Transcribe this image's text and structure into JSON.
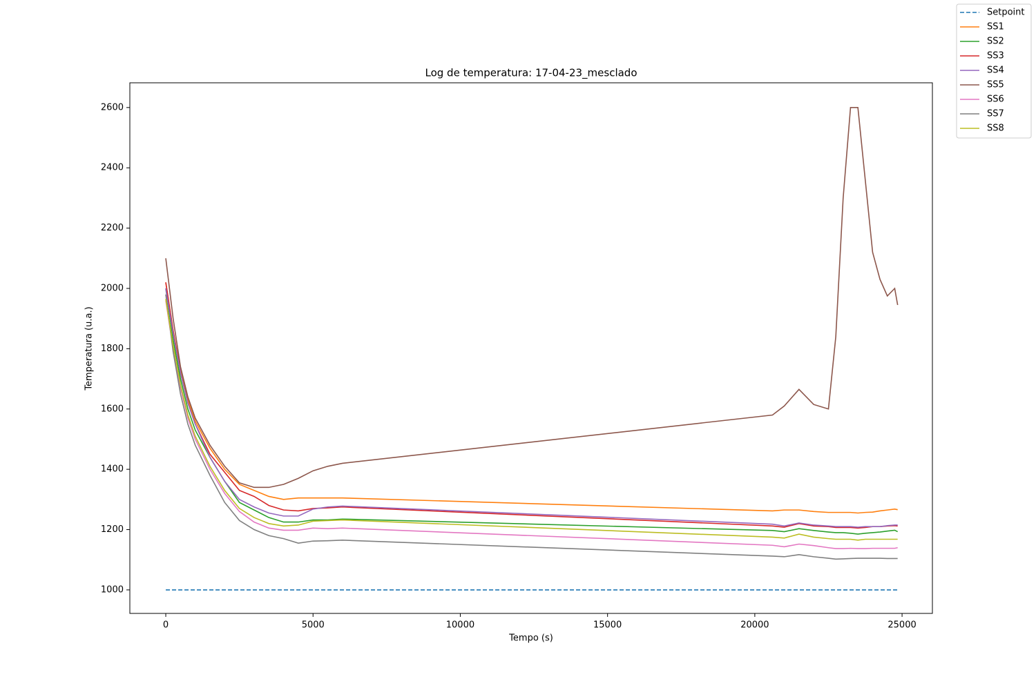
{
  "chart_data": {
    "type": "line",
    "title": "Log de temperatura: 17-04-23_mesclado",
    "x_label": "Tempo (s)",
    "y_label": "Temperatura (u.a.)",
    "x": [
      0,
      250,
      500,
      750,
      1000,
      1500,
      2000,
      2500,
      3000,
      3500,
      4000,
      4500,
      5000,
      5500,
      6000,
      20600,
      21000,
      21500,
      22000,
      22500,
      22750,
      23000,
      23250,
      23500,
      23750,
      24000,
      24250,
      24500,
      24750,
      24850
    ],
    "xlim": [
      -1220,
      26030
    ],
    "ylim": [
      922,
      2682
    ],
    "xticks": [
      0,
      5000,
      10000,
      15000,
      20000,
      25000
    ],
    "yticks": [
      1000,
      1200,
      1400,
      1600,
      1800,
      2000,
      2200,
      2400,
      2600
    ],
    "legend": "upper-right-outside",
    "series": [
      {
        "name": "Setpoint",
        "color": "#1f77b4",
        "linestyle": "dashed",
        "values": [
          1000,
          1000,
          1000,
          1000,
          1000,
          1000,
          1000,
          1000,
          1000,
          1000,
          1000,
          1000,
          1000,
          1000,
          1000,
          1000,
          1000,
          1000,
          1000,
          1000,
          1000,
          1000,
          1000,
          1000,
          1000,
          1000,
          1000,
          1000,
          1000,
          1000
        ]
      },
      {
        "name": "SS1",
        "color": "#ff7f0e",
        "linestyle": "solid",
        "values": [
          2020,
          1860,
          1730,
          1630,
          1560,
          1470,
          1400,
          1350,
          1330,
          1310,
          1300,
          1305,
          1305,
          1305,
          1305,
          1262,
          1265,
          1265,
          1260,
          1257,
          1257,
          1257,
          1257,
          1255,
          1257,
          1258,
          1262,
          1265,
          1268,
          1266
        ]
      },
      {
        "name": "SS2",
        "color": "#2ca02c",
        "linestyle": "solid",
        "values": [
          2000,
          1830,
          1700,
          1600,
          1530,
          1440,
          1360,
          1290,
          1265,
          1240,
          1225,
          1225,
          1232,
          1232,
          1235,
          1197,
          1193,
          1203,
          1197,
          1192,
          1190,
          1190,
          1188,
          1185,
          1188,
          1190,
          1192,
          1195,
          1198,
          1193
        ]
      },
      {
        "name": "SS3",
        "color": "#d62728",
        "linestyle": "solid",
        "values": [
          2020,
          1860,
          1720,
          1620,
          1550,
          1450,
          1390,
          1330,
          1310,
          1280,
          1265,
          1262,
          1270,
          1272,
          1275,
          1212,
          1208,
          1220,
          1212,
          1210,
          1207,
          1207,
          1207,
          1205,
          1207,
          1210,
          1210,
          1212,
          1213,
          1212
        ]
      },
      {
        "name": "SS4",
        "color": "#9467bd",
        "linestyle": "solid",
        "values": [
          2000,
          1850,
          1720,
          1620,
          1550,
          1440,
          1360,
          1300,
          1275,
          1255,
          1245,
          1245,
          1268,
          1275,
          1278,
          1218,
          1212,
          1222,
          1215,
          1212,
          1210,
          1210,
          1210,
          1208,
          1210,
          1210,
          1210,
          1213,
          1215,
          1215
        ]
      },
      {
        "name": "SS5",
        "color": "#8c564b",
        "linestyle": "solid",
        "values": [
          2100,
          1900,
          1740,
          1640,
          1570,
          1480,
          1410,
          1355,
          1340,
          1340,
          1350,
          1370,
          1395,
          1410,
          1420,
          1580,
          1610,
          1665,
          1615,
          1600,
          1840,
          2300,
          2600,
          2600,
          2360,
          2120,
          2030,
          1975,
          2000,
          1945
        ]
      },
      {
        "name": "SS6",
        "color": "#e377c2",
        "linestyle": "solid",
        "values": [
          1960,
          1800,
          1670,
          1570,
          1500,
          1400,
          1320,
          1260,
          1225,
          1205,
          1198,
          1198,
          1205,
          1203,
          1205,
          1148,
          1143,
          1152,
          1147,
          1140,
          1137,
          1137,
          1138,
          1137,
          1137,
          1138,
          1138,
          1138,
          1138,
          1140
        ]
      },
      {
        "name": "SS7",
        "color": "#7f7f7f",
        "linestyle": "solid",
        "values": [
          1980,
          1790,
          1650,
          1550,
          1480,
          1380,
          1290,
          1230,
          1200,
          1180,
          1170,
          1155,
          1162,
          1163,
          1165,
          1112,
          1110,
          1117,
          1110,
          1105,
          1102,
          1103,
          1104,
          1105,
          1105,
          1105,
          1105,
          1104,
          1104,
          1104
        ]
      },
      {
        "name": "SS8",
        "color": "#bcbd22",
        "linestyle": "solid",
        "values": [
          1965,
          1810,
          1680,
          1580,
          1510,
          1410,
          1330,
          1270,
          1240,
          1220,
          1212,
          1215,
          1228,
          1230,
          1232,
          1175,
          1172,
          1185,
          1175,
          1170,
          1168,
          1168,
          1168,
          1165,
          1168,
          1168,
          1168,
          1168,
          1168,
          1168
        ]
      }
    ]
  }
}
